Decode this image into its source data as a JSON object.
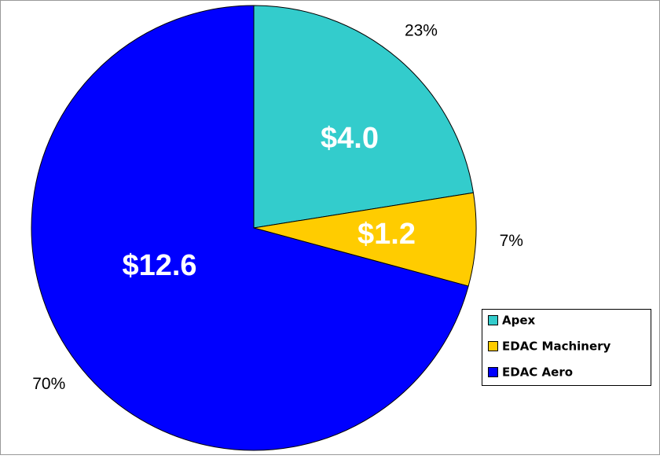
{
  "chart_data": {
    "type": "pie",
    "categories": [
      "Apex",
      "EDAC Machinery",
      "EDAC Aero"
    ],
    "values": [
      4.0,
      1.2,
      12.6
    ],
    "value_labels": [
      "$4.0",
      "$1.2",
      "$12.6"
    ],
    "percents": [
      23,
      7,
      70
    ],
    "percent_labels": [
      "23%",
      "7%",
      "70%"
    ],
    "colors": [
      "#33cccc",
      "#ffcc00",
      "#0000ff"
    ],
    "legend": "right"
  }
}
